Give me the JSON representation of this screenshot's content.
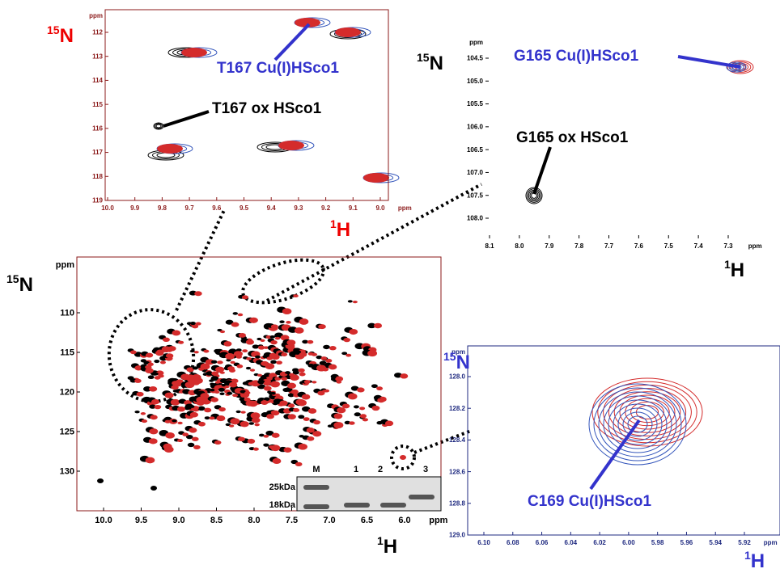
{
  "panel_a": {
    "y_label": {
      "iso": "15",
      "nucleus": "N"
    },
    "x_label": {
      "iso": "1",
      "nucleus": "H"
    },
    "x_ticks": [
      "10.0",
      "9.9",
      "9.8",
      "9.7",
      "9.6",
      "9.5",
      "9.4",
      "9.3",
      "9.2",
      "9.1",
      "9.0"
    ],
    "x_unit": "ppm",
    "y_ticks": [
      "112",
      "113",
      "114",
      "115",
      "116",
      "117",
      "118",
      "119"
    ],
    "y_unit": "ppm",
    "annotations": [
      "T167 Cu(I)HSco1",
      "T167 ox HSco1"
    ]
  },
  "panel_b": {
    "y_label": {
      "iso": "15",
      "nucleus": "N"
    },
    "x_label": {
      "iso": "1",
      "nucleus": "H"
    },
    "x_ticks": [
      "8.1",
      "8.0",
      "7.9",
      "7.8",
      "7.7",
      "7.6",
      "7.5",
      "7.4",
      "7.3"
    ],
    "x_unit": "ppm",
    "y_ticks": [
      "104.5",
      "105.0",
      "105.5",
      "106.0",
      "106.5",
      "107.0",
      "107.5",
      "108.0"
    ],
    "y_unit": "ppm",
    "annotations": [
      "G165 Cu(I)HSco1",
      "G165 ox HSco1"
    ]
  },
  "panel_c": {
    "y_label": {
      "iso": "15",
      "nucleus": "N"
    },
    "x_label": {
      "iso": "1",
      "nucleus": "H"
    },
    "x_ticks": [
      "10.0",
      "9.5",
      "9.0",
      "8.5",
      "8.0",
      "7.5",
      "7.0",
      "6.5",
      "6.0"
    ],
    "x_unit": "ppm",
    "y_ticks": [
      "110",
      "115",
      "120",
      "125",
      "130"
    ],
    "y_unit": "ppm",
    "gel": {
      "lanes": [
        "M",
        "1",
        "2",
        "3"
      ],
      "markers": [
        "25kDa",
        "18kDa"
      ]
    }
  },
  "panel_d": {
    "y_label": {
      "iso": "15",
      "nucleus": "N"
    },
    "x_label": {
      "iso": "1",
      "nucleus": "H"
    },
    "x_ticks": [
      "6.10",
      "6.08",
      "6.06",
      "6.04",
      "6.02",
      "6.00",
      "5.98",
      "5.96",
      "5.94",
      "5.92"
    ],
    "x_unit": "ppm",
    "y_ticks": [
      "128.0",
      "128.2",
      "128.4",
      "128.6",
      "128.8",
      "129.0"
    ],
    "y_unit": "ppm",
    "annotations": [
      "C169 Cu(I)HSco1"
    ]
  }
}
